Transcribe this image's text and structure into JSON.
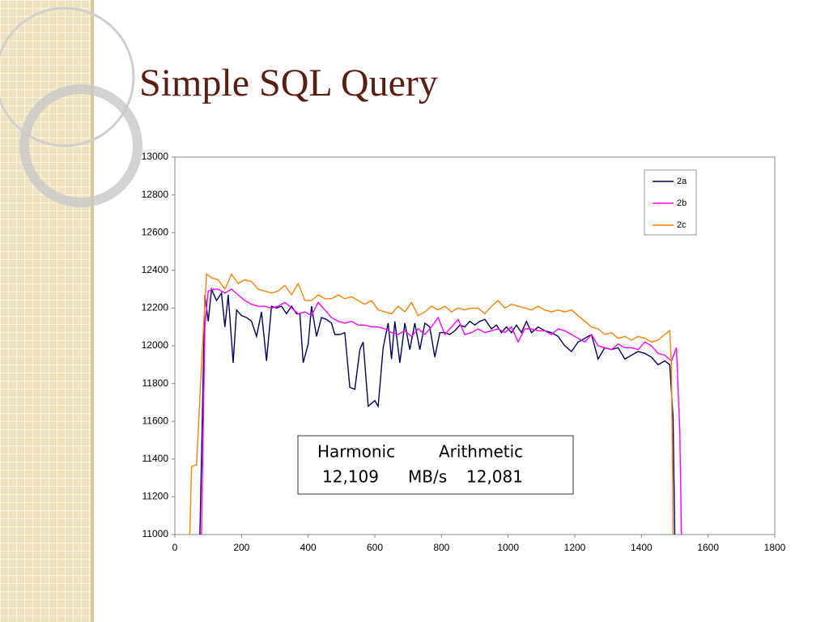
{
  "chart_data": {
    "type": "line",
    "title": "Simple SQL Query",
    "xlim": [
      0,
      1800
    ],
    "xticks": [
      0,
      200,
      400,
      600,
      800,
      1000,
      1200,
      1400,
      1600,
      1800
    ],
    "ylim": [
      11000,
      13000
    ],
    "yticks": [
      11000,
      11200,
      11400,
      11600,
      11800,
      12000,
      12200,
      12400,
      12600,
      12800,
      13000
    ],
    "legend": "upper right",
    "annotation": {
      "labels": [
        "Harmonic",
        "Arithmetic"
      ],
      "values": [
        "12,109",
        "12,081"
      ],
      "unit": "MB/s"
    },
    "series": [
      {
        "name": "2a",
        "color": "#000066",
        "x": [
          75,
          90,
          100,
          110,
          125,
          140,
          150,
          160,
          175,
          185,
          200,
          215,
          230,
          245,
          260,
          275,
          290,
          305,
          320,
          335,
          350,
          365,
          375,
          385,
          400,
          410,
          425,
          440,
          455,
          470,
          480,
          495,
          510,
          525,
          540,
          555,
          565,
          580,
          600,
          610,
          625,
          640,
          650,
          660,
          675,
          690,
          705,
          720,
          735,
          750,
          765,
          780,
          795,
          810,
          825,
          840,
          855,
          870,
          885,
          900,
          915,
          930,
          950,
          965,
          980,
          995,
          1010,
          1025,
          1040,
          1055,
          1070,
          1090,
          1110,
          1130,
          1150,
          1170,
          1190,
          1210,
          1230,
          1250,
          1270,
          1290,
          1310,
          1330,
          1350,
          1370,
          1390,
          1410,
          1430,
          1450,
          1470,
          1485,
          1495,
          1500
        ],
        "values": [
          11000,
          12270,
          12130,
          12300,
          12240,
          12280,
          12100,
          12270,
          11910,
          12190,
          12160,
          12150,
          12130,
          12050,
          12180,
          11920,
          12210,
          12200,
          12210,
          12170,
          12210,
          12170,
          12170,
          11910,
          12010,
          12210,
          12050,
          12150,
          12140,
          12120,
          12060,
          12060,
          12070,
          11780,
          11770,
          11980,
          12020,
          11680,
          11710,
          11680,
          11990,
          12120,
          11930,
          12130,
          11910,
          12120,
          11980,
          12120,
          11980,
          12120,
          12100,
          11940,
          12070,
          12070,
          12060,
          12080,
          12110,
          12100,
          12130,
          12110,
          12130,
          12140,
          12090,
          12110,
          12070,
          12100,
          12070,
          12110,
          12070,
          12130,
          12070,
          12100,
          12080,
          12070,
          12050,
          12000,
          11970,
          12020,
          12040,
          12060,
          11930,
          11990,
          11980,
          11990,
          11930,
          11950,
          11970,
          11960,
          11940,
          11900,
          11920,
          11900,
          11620,
          11000
        ]
      },
      {
        "name": "2b",
        "color": "#ff00ff",
        "x": [
          80,
          90,
          100,
          115,
          130,
          150,
          170,
          190,
          210,
          230,
          250,
          270,
          290,
          310,
          330,
          350,
          370,
          390,
          410,
          430,
          450,
          470,
          490,
          510,
          530,
          550,
          570,
          590,
          610,
          630,
          650,
          670,
          690,
          710,
          730,
          750,
          770,
          790,
          810,
          830,
          850,
          870,
          890,
          910,
          930,
          950,
          970,
          990,
          1010,
          1030,
          1050,
          1070,
          1090,
          1110,
          1130,
          1150,
          1170,
          1190,
          1210,
          1230,
          1250,
          1270,
          1290,
          1310,
          1330,
          1350,
          1370,
          1390,
          1410,
          1430,
          1450,
          1470,
          1490,
          1505,
          1515,
          1520
        ],
        "values": [
          11000,
          12100,
          12290,
          12300,
          12300,
          12280,
          12300,
          12270,
          12240,
          12220,
          12210,
          12210,
          12200,
          12210,
          12230,
          12200,
          12170,
          12180,
          12160,
          12230,
          12190,
          12150,
          12130,
          12120,
          12130,
          12110,
          12110,
          12100,
          12100,
          12090,
          12070,
          12060,
          12080,
          12050,
          12090,
          12060,
          12100,
          12150,
          12060,
          12100,
          12140,
          12060,
          12070,
          12090,
          12070,
          12080,
          12090,
          12070,
          12100,
          12020,
          12090,
          12090,
          12080,
          12080,
          12060,
          12090,
          12080,
          12060,
          12040,
          12020,
          12060,
          12000,
          11990,
          11980,
          12010,
          11990,
          11990,
          11980,
          12020,
          12000,
          11960,
          11950,
          11920,
          11990,
          11550,
          11000
        ]
      },
      {
        "name": "2c",
        "color": "#ff7f00",
        "x": [
          45,
          50,
          65,
          80,
          95,
          110,
          130,
          150,
          170,
          190,
          210,
          230,
          250,
          270,
          290,
          310,
          330,
          350,
          370,
          390,
          410,
          430,
          450,
          470,
          490,
          510,
          530,
          550,
          570,
          590,
          610,
          630,
          650,
          670,
          690,
          710,
          730,
          750,
          770,
          790,
          810,
          830,
          850,
          870,
          890,
          910,
          930,
          950,
          970,
          990,
          1010,
          1030,
          1050,
          1070,
          1090,
          1110,
          1130,
          1150,
          1170,
          1190,
          1210,
          1230,
          1250,
          1270,
          1290,
          1310,
          1330,
          1350,
          1370,
          1390,
          1410,
          1430,
          1450,
          1470,
          1485,
          1490,
          1495
        ],
        "values": [
          11000,
          11360,
          11370,
          11900,
          12380,
          12360,
          12350,
          12300,
          12380,
          12330,
          12350,
          12340,
          12300,
          12290,
          12280,
          12290,
          12320,
          12270,
          12330,
          12240,
          12240,
          12270,
          12250,
          12250,
          12270,
          12250,
          12260,
          12240,
          12220,
          12240,
          12190,
          12180,
          12170,
          12210,
          12180,
          12230,
          12160,
          12180,
          12210,
          12190,
          12210,
          12180,
          12200,
          12190,
          12200,
          12200,
          12170,
          12210,
          12240,
          12200,
          12220,
          12210,
          12200,
          12190,
          12210,
          12190,
          12180,
          12190,
          12180,
          12190,
          12160,
          12130,
          12100,
          12090,
          12060,
          12070,
          12040,
          12050,
          12030,
          12050,
          12040,
          12020,
          12030,
          12060,
          12080,
          11900,
          11000
        ]
      }
    ]
  }
}
